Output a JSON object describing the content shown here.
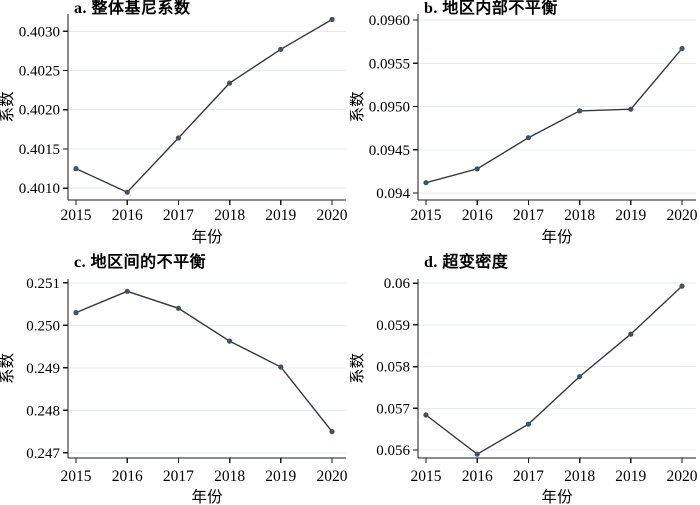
{
  "figure": {
    "background": "#ffffff",
    "panels_order": [
      "a",
      "b",
      "c",
      "d"
    ]
  },
  "style": {
    "line_color": "#37393c",
    "marker_color": "#3e5263",
    "grid_color": "#e3edf1",
    "axis_color": "#1a1a1a",
    "text_color": "#000000"
  },
  "chart_data": [
    {
      "type": "line",
      "panel": "a",
      "title": "a. 整体基尼系数",
      "xlabel": "年份",
      "ylabel": "系数",
      "x": [
        2015,
        2016,
        2017,
        2018,
        2019,
        2020
      ],
      "values": [
        0.40125,
        0.40095,
        0.40164,
        0.40234,
        0.40277,
        0.40315
      ],
      "yticks": [
        0.401,
        0.4015,
        0.402,
        0.4025,
        0.403
      ],
      "ytick_labels": [
        "0.4010",
        "0.4015",
        "0.4020",
        "0.4025",
        "0.4030"
      ],
      "ylim": [
        0.40085,
        0.40322
      ],
      "grid": true,
      "legend": "none"
    },
    {
      "type": "line",
      "panel": "b",
      "title": "b. 地区内部不平衡",
      "xlabel": "年份",
      "ylabel": "系数",
      "x": [
        2015,
        2016,
        2017,
        2018,
        2019,
        2020
      ],
      "values": [
        0.09412,
        0.09428,
        0.09464,
        0.09495,
        0.09497,
        0.09567
      ],
      "yticks": [
        0.094,
        0.0945,
        0.095,
        0.0955,
        0.096
      ],
      "ytick_labels": [
        "0.094",
        "0.0945",
        "0.0950",
        "0.0955",
        "0.0960"
      ],
      "ylim": [
        0.09392,
        0.09607
      ],
      "grid": true,
      "legend": "none"
    },
    {
      "type": "line",
      "panel": "c",
      "title": "c. 地区间的不平衡",
      "xlabel": "年份",
      "ylabel": "系数",
      "x": [
        2015,
        2016,
        2017,
        2018,
        2019,
        2020
      ],
      "values": [
        0.2503,
        0.2508,
        0.2504,
        0.24963,
        0.24902,
        0.2475
      ],
      "yticks": [
        0.247,
        0.248,
        0.249,
        0.25,
        0.251
      ],
      "ytick_labels": [
        "0.247",
        "0.248",
        "0.249",
        "0.250",
        "0.251"
      ],
      "ylim": [
        0.24688,
        0.25109
      ],
      "grid": true,
      "legend": "none"
    },
    {
      "type": "line",
      "panel": "d",
      "title": "d. 超变密度",
      "xlabel": "年份",
      "ylabel": "系数",
      "x": [
        2015,
        2016,
        2017,
        2018,
        2019,
        2020
      ],
      "values": [
        0.05684,
        0.0559,
        0.05662,
        0.05776,
        0.05878,
        0.05993
      ],
      "yticks": [
        0.056,
        0.057,
        0.058,
        0.059,
        0.06
      ],
      "ytick_labels": [
        "0.056",
        "0.057",
        "0.058",
        "0.059",
        "0.06"
      ],
      "ylim": [
        0.05581,
        0.0601
      ],
      "grid": true,
      "legend": "none"
    }
  ]
}
